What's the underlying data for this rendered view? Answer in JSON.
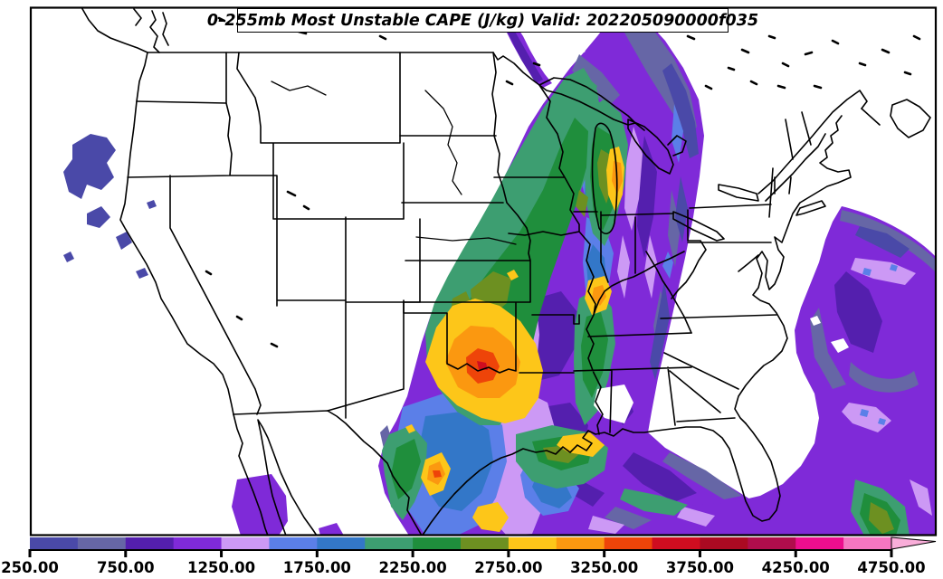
{
  "title": {
    "text": "0-255mb Most Unstable CAPE (J/kg) Valid: 202205090000f035"
  },
  "colorbar": {
    "units": "J/kg",
    "interval": 250,
    "tick_labels": [
      "250.00",
      "750.00",
      "1250.00",
      "1750.00",
      "2250.00",
      "2750.00",
      "3250.00",
      "3750.00",
      "4250.00",
      "4750.00"
    ],
    "segments": [
      {
        "from": 250,
        "to": 500,
        "color": "#4a49a8"
      },
      {
        "from": 500,
        "to": 750,
        "color": "#6666a6"
      },
      {
        "from": 750,
        "to": 1000,
        "color": "#541fae"
      },
      {
        "from": 1000,
        "to": 1250,
        "color": "#7f2ad8"
      },
      {
        "from": 1250,
        "to": 1500,
        "color": "#cc99f5"
      },
      {
        "from": 1500,
        "to": 1750,
        "color": "#5b7fe8"
      },
      {
        "from": 1750,
        "to": 2000,
        "color": "#3377c8"
      },
      {
        "from": 2000,
        "to": 2250,
        "color": "#3d9e71"
      },
      {
        "from": 2250,
        "to": 2500,
        "color": "#1f8e3c"
      },
      {
        "from": 2500,
        "to": 2750,
        "color": "#6d9021"
      },
      {
        "from": 2750,
        "to": 3000,
        "color": "#fdc619"
      },
      {
        "from": 3000,
        "to": 3250,
        "color": "#fb9810"
      },
      {
        "from": 3250,
        "to": 3500,
        "color": "#ee4409"
      },
      {
        "from": 3500,
        "to": 3750,
        "color": "#cf0d20"
      },
      {
        "from": 3750,
        "to": 4000,
        "color": "#ab0a22"
      },
      {
        "from": 4000,
        "to": 4250,
        "color": "#b00d4c"
      },
      {
        "from": 4250,
        "to": 4500,
        "color": "#ec0e8e"
      },
      {
        "from": 4500,
        "to": 4750,
        "color": "#f576c1"
      }
    ],
    "arrow_color": "#f9add9"
  },
  "chart_data": {
    "type": "heatmap",
    "title": "0-255mb Most Unstable CAPE (J/kg) Valid: 202205090000f035",
    "field": "Most Unstable CAPE",
    "layer": "0-255mb",
    "units": "J/kg",
    "valid": "202205090000f035",
    "region": "Continental United States",
    "scale_min": 250,
    "scale_max": 4750,
    "contour_interval": 250,
    "legend_position": "bottom",
    "notable_features": [
      "CAPE maximum 3250-3750 J/kg over southern Oklahoma / north Texas",
      "Broad unstable plume from Texas and the Gulf coast north to the Great Lakes",
      "Secondary maxima over Lake Michigan, middle Tennessee, south Texas and the Gulf south of Louisiana",
      "Weak CAPE (250-1500 J/kg) comma-shaped swirl over the western Atlantic",
      "Small weak-CAPE patches off the Oregon / northern California coast"
    ]
  }
}
